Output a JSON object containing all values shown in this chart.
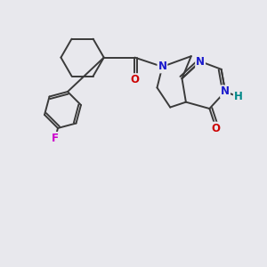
{
  "background_color": "#e8e8ed",
  "bond_color": "#3a3a3a",
  "bond_width": 1.4,
  "atom_colors": {
    "N": "#1a1acc",
    "O": "#cc0000",
    "F": "#cc00cc",
    "H": "#008888",
    "C": "#3a3a3a"
  },
  "font_size": 8.5
}
